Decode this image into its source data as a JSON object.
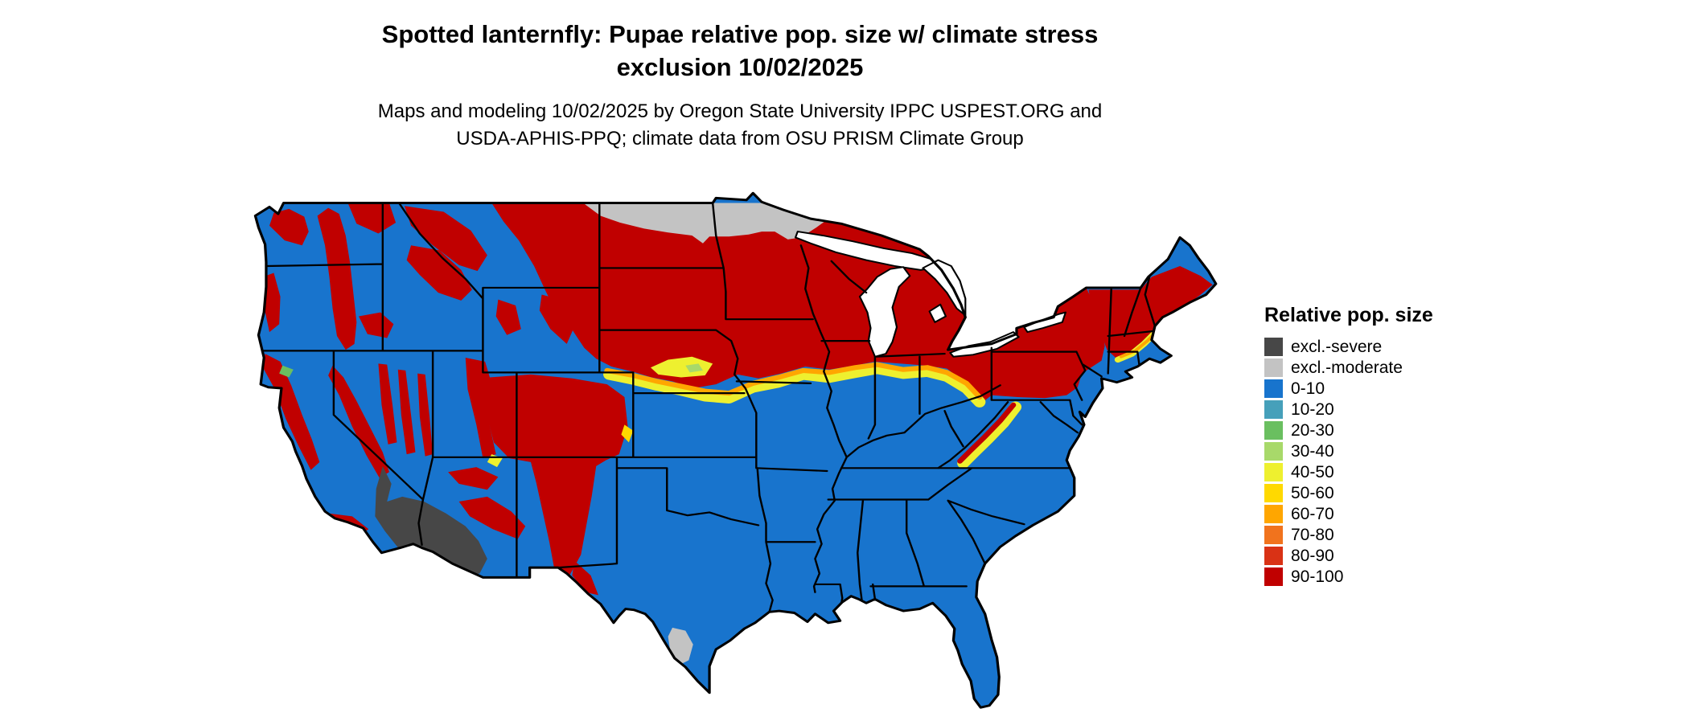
{
  "title": {
    "line1": "Spotted lanternfly: Pupae relative pop. size w/ climate stress",
    "line2": "exclusion 10/02/2025"
  },
  "subtitle": {
    "line1": "Maps and modeling 10/02/2025 by Oregon State University IPPC USPEST.ORG and",
    "line2": "USDA-APHIS-PPQ; climate data from OSU PRISM Climate Group"
  },
  "legend": {
    "title": "Relative pop. size",
    "items": [
      {
        "label": "excl.-severe",
        "color": "#474747"
      },
      {
        "label": "excl.-moderate",
        "color": "#c3c3c3"
      },
      {
        "label": "0-10",
        "color": "#1874cd"
      },
      {
        "label": "10-20",
        "color": "#46a0ba"
      },
      {
        "label": "20-30",
        "color": "#6abf60"
      },
      {
        "label": "30-40",
        "color": "#a8d96a"
      },
      {
        "label": "40-50",
        "color": "#eef02f"
      },
      {
        "label": "50-60",
        "color": "#ffd900"
      },
      {
        "label": "60-70",
        "color": "#ffa600"
      },
      {
        "label": "70-80",
        "color": "#f1731d"
      },
      {
        "label": "80-90",
        "color": "#d93215"
      },
      {
        "label": "90-100",
        "color": "#c00000"
      }
    ]
  },
  "map": {
    "border_color": "#000000",
    "water_color": "#ffffff"
  }
}
